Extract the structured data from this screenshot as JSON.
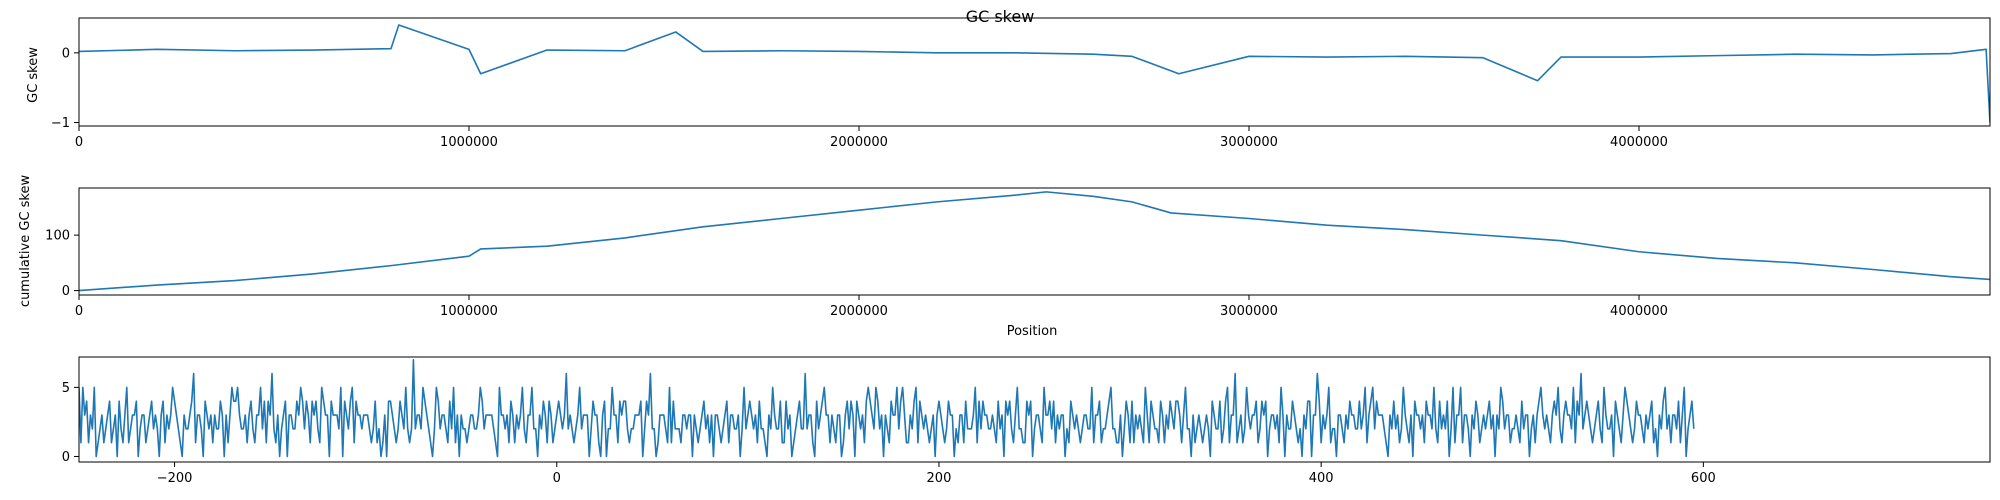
{
  "figure": {
    "title": "GC skew",
    "line_color": "#1f77b4"
  },
  "chart_data": [
    {
      "type": "line",
      "title": "GC skew",
      "xlabel": "",
      "ylabel": "GC skew",
      "xlim": [
        0,
        4900000
      ],
      "ylim": [
        -1.05,
        0.5
      ],
      "xticks": [
        0,
        1000000,
        2000000,
        3000000,
        4000000
      ],
      "xtick_labels": [
        "0",
        "1000000",
        "2000000",
        "3000000",
        "4000000"
      ],
      "yticks": [
        -1,
        0
      ],
      "ytick_labels": [
        "−1",
        "0"
      ],
      "series": [
        {
          "x": [
            0,
            200000,
            400000,
            600000,
            800000,
            820000,
            1000000,
            1030000,
            1200000,
            1400000,
            1530000,
            1600000,
            1800000,
            2000000,
            2200000,
            2400000,
            2600000,
            2700000,
            2820000,
            3000000,
            3200000,
            3400000,
            3600000,
            3740000,
            3800000,
            4000000,
            4200000,
            4400000,
            4600000,
            4800000,
            4890000,
            4900000
          ],
          "y": [
            0.02,
            0.05,
            0.03,
            0.04,
            0.06,
            0.4,
            0.05,
            -0.3,
            0.04,
            0.03,
            0.3,
            0.02,
            0.03,
            0.02,
            0.0,
            0.0,
            -0.02,
            -0.05,
            -0.3,
            -0.05,
            -0.06,
            -0.05,
            -0.07,
            -0.4,
            -0.06,
            -0.06,
            -0.04,
            -0.02,
            -0.03,
            -0.01,
            0.05,
            -1.0
          ]
        }
      ]
    },
    {
      "type": "line",
      "title": "",
      "xlabel": "Position",
      "ylabel": "cumulative GC skew",
      "xlim": [
        0,
        4900000
      ],
      "ylim": [
        -8,
        185
      ],
      "xticks": [
        0,
        1000000,
        2000000,
        3000000,
        4000000
      ],
      "xtick_labels": [
        "0",
        "1000000",
        "2000000",
        "3000000",
        "4000000"
      ],
      "yticks": [
        0,
        100
      ],
      "ytick_labels": [
        "0",
        "100"
      ],
      "series": [
        {
          "x": [
            0,
            200000,
            400000,
            600000,
            800000,
            1000000,
            1030000,
            1200000,
            1400000,
            1600000,
            1800000,
            2000000,
            2200000,
            2400000,
            2480000,
            2600000,
            2700000,
            2800000,
            3000000,
            3200000,
            3400000,
            3600000,
            3800000,
            4000000,
            4200000,
            4400000,
            4600000,
            4800000,
            4900000
          ],
          "y": [
            0,
            10,
            18,
            30,
            45,
            62,
            75,
            80,
            95,
            115,
            130,
            145,
            160,
            172,
            178,
            170,
            160,
            140,
            130,
            118,
            110,
            100,
            90,
            70,
            58,
            50,
            38,
            25,
            20
          ]
        }
      ]
    },
    {
      "type": "line",
      "title": "",
      "xlabel": "",
      "ylabel": "",
      "xlim": [
        -250,
        750
      ],
      "ylim": [
        -0.4,
        7.2
      ],
      "xticks": [
        -200,
        0,
        200,
        400,
        600
      ],
      "xtick_labels": [
        "−200",
        "0",
        "200",
        "400",
        "600"
      ],
      "yticks": [
        0,
        5
      ],
      "ytick_labels": [
        "0",
        "5"
      ],
      "series": [
        {
          "x_start": -250,
          "x_step": 1,
          "y": [
            5,
            1,
            5,
            3,
            4,
            1,
            3,
            2,
            5,
            0,
            1,
            2,
            3,
            1,
            2,
            3,
            4,
            1,
            2,
            3,
            0,
            4,
            2,
            1,
            3,
            5,
            1,
            2,
            3,
            3,
            4,
            0,
            2,
            3,
            3,
            1,
            2,
            3,
            4,
            2,
            3,
            2,
            0,
            3,
            4,
            1,
            3,
            2,
            3,
            5,
            4,
            3,
            2,
            1,
            0,
            3,
            2,
            2,
            3,
            4,
            6,
            1,
            3,
            3,
            2,
            0,
            4,
            3,
            2,
            3,
            1,
            3,
            2,
            2,
            4,
            3,
            0,
            3,
            1,
            3,
            5,
            4,
            4,
            5,
            3,
            2,
            2,
            3,
            1,
            3,
            4,
            2,
            1,
            3,
            3,
            5,
            2,
            4,
            1,
            4,
            3,
            6,
            2,
            1,
            3,
            0,
            2,
            3,
            4,
            0,
            3,
            3,
            2,
            2,
            4,
            3,
            5,
            4,
            2,
            4,
            3,
            1,
            4,
            3,
            4,
            2,
            1,
            5,
            4,
            3,
            3,
            0,
            4,
            3,
            3,
            3,
            2,
            5,
            0,
            4,
            3,
            2,
            4,
            5,
            1,
            4,
            3,
            3,
            2,
            3,
            3,
            3,
            2,
            1,
            2,
            4,
            1,
            2,
            0,
            1,
            3,
            0,
            4,
            4,
            3,
            2,
            1,
            2,
            4,
            3,
            2,
            5,
            2,
            1,
            2,
            7,
            2,
            3,
            3,
            2,
            5,
            4,
            3,
            2,
            1,
            0,
            2,
            5,
            4,
            2,
            3,
            3,
            2,
            1,
            4,
            2,
            5,
            1,
            3,
            0,
            3,
            2,
            2,
            1,
            2,
            3,
            3,
            2,
            2,
            3,
            5,
            4,
            2,
            3,
            3,
            3,
            3,
            2,
            1,
            0,
            5,
            3,
            3,
            2,
            3,
            1,
            4,
            3,
            1,
            3,
            2,
            3,
            5,
            2,
            1,
            3,
            3,
            5,
            2,
            2,
            0,
            3,
            2,
            4,
            3,
            1,
            4,
            3,
            1,
            2,
            3,
            4,
            3,
            2,
            3,
            6,
            2,
            3,
            2,
            1,
            2,
            3,
            5,
            2,
            3,
            3,
            3,
            0,
            2,
            4,
            3,
            3,
            1,
            0,
            3,
            4,
            0,
            2,
            2,
            5,
            3,
            3,
            1,
            4,
            3,
            4,
            4,
            2,
            1,
            2,
            2,
            3,
            3,
            3,
            4,
            0,
            2,
            4,
            3,
            6,
            2,
            2,
            0,
            1,
            3,
            3,
            3,
            2,
            1,
            5,
            1,
            4,
            2,
            2,
            2,
            1,
            3,
            3,
            2,
            3,
            3,
            0,
            3,
            2,
            1,
            2,
            3,
            4,
            2,
            3,
            1,
            3,
            0,
            3,
            3,
            2,
            1,
            2,
            3,
            4,
            1,
            3,
            3,
            2,
            2,
            3,
            0,
            2,
            5,
            2,
            3,
            4,
            3,
            2,
            3,
            1,
            4,
            2,
            2,
            1,
            0,
            3,
            2,
            5,
            3,
            2,
            2,
            4,
            1,
            1,
            4,
            2,
            3,
            0,
            1,
            2,
            3,
            4,
            2,
            2,
            6,
            2,
            3,
            3,
            1,
            0,
            4,
            2,
            3,
            4,
            5,
            3,
            3,
            1,
            3,
            2,
            1,
            3,
            3,
            0,
            1,
            3,
            4,
            2,
            4,
            3,
            0,
            4,
            3,
            2,
            3,
            1,
            4,
            5,
            4,
            3,
            2,
            5,
            4,
            2,
            3,
            0,
            3,
            2,
            1,
            4,
            3,
            3,
            5,
            2,
            4,
            5,
            3,
            1,
            1,
            3,
            2,
            4,
            5,
            1,
            4,
            3,
            2,
            3,
            2,
            1,
            2,
            3,
            0,
            3,
            4,
            3,
            2,
            1,
            2,
            4,
            3,
            3,
            0,
            2,
            1,
            3,
            3,
            1,
            4,
            2,
            2,
            2,
            3,
            5,
            1,
            4,
            2,
            4,
            3,
            3,
            2,
            2,
            3,
            2,
            1,
            4,
            2,
            3,
            0,
            4,
            3,
            4,
            2,
            1,
            3,
            5,
            2,
            2,
            1,
            1,
            4,
            3,
            4,
            0,
            2,
            3,
            3,
            2,
            1,
            5,
            3,
            3,
            4,
            2,
            4,
            1,
            3,
            2,
            3,
            3,
            0,
            2,
            1,
            4,
            3,
            2,
            3,
            2,
            1,
            2,
            3,
            3,
            2,
            2,
            5,
            1,
            3,
            3,
            4,
            1,
            2,
            2,
            3,
            4,
            5,
            2,
            2,
            1,
            1,
            3,
            0,
            2,
            4,
            3,
            1,
            4,
            1,
            3,
            2,
            3,
            2,
            1,
            5,
            3,
            1,
            4,
            3,
            2,
            2,
            1,
            4,
            3,
            1,
            3,
            2,
            4,
            3,
            2,
            4,
            4,
            3,
            1,
            3,
            5,
            2,
            2,
            0,
            3,
            1,
            2,
            3,
            2,
            1,
            2,
            3,
            2,
            0,
            4,
            3,
            2,
            2,
            4,
            1,
            2,
            4,
            5,
            1,
            3,
            3,
            6,
            1,
            2,
            3,
            1,
            2,
            5,
            3,
            2,
            3,
            3,
            4,
            1,
            2,
            4,
            3,
            4,
            0,
            2,
            3,
            3,
            2,
            3,
            1,
            5,
            3,
            0,
            3,
            2,
            2,
            4,
            3,
            2,
            1,
            2,
            0,
            3,
            2,
            4,
            4,
            0,
            3,
            3,
            6,
            4,
            1,
            3,
            2,
            3,
            5,
            1,
            2,
            2,
            0,
            3,
            3,
            2,
            1,
            3,
            2,
            4,
            3,
            3,
            2,
            2,
            4,
            2,
            3,
            5,
            1,
            3,
            4,
            5,
            2,
            4,
            3,
            3,
            3,
            2,
            1,
            0,
            3,
            2,
            4,
            2,
            3,
            1,
            2,
            5,
            3,
            2,
            1,
            3,
            0,
            4,
            3,
            3,
            2,
            3,
            1,
            4,
            3,
            3,
            2,
            5,
            2,
            1,
            4,
            2,
            3,
            2,
            4,
            0,
            2,
            5,
            1,
            3,
            3,
            5,
            1,
            3,
            3,
            2,
            0,
            3,
            2,
            4,
            3,
            1,
            2,
            3,
            2,
            3,
            4,
            2,
            3,
            0,
            3,
            2,
            5,
            4,
            2,
            3,
            3,
            1,
            2,
            2,
            3,
            2,
            1,
            4,
            2,
            3,
            3,
            0,
            2,
            3,
            1,
            3,
            4,
            5,
            3,
            2,
            3,
            2,
            1,
            3,
            4,
            3,
            5,
            2,
            1,
            3,
            4,
            3,
            3,
            2,
            5,
            1,
            4,
            3,
            6,
            2,
            3,
            4,
            3,
            2,
            1,
            2,
            3,
            4,
            2,
            1,
            5,
            3,
            2,
            2,
            3,
            0,
            4,
            3,
            2,
            1,
            3,
            5,
            4,
            3,
            2,
            1,
            2,
            4,
            3,
            3,
            2,
            1,
            3,
            2,
            3,
            4,
            1,
            2,
            0,
            3,
            2,
            4,
            5,
            2,
            3,
            1,
            3,
            3,
            2,
            4,
            1,
            3,
            5,
            0,
            2,
            3,
            4,
            2
          ]
        }
      ]
    }
  ]
}
